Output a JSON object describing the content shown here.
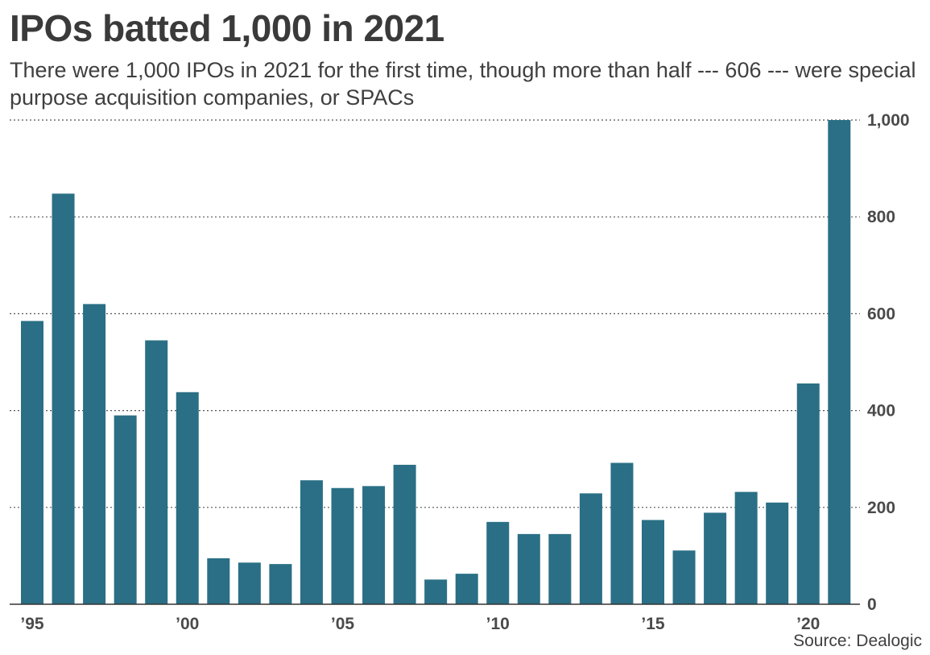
{
  "chart_data": {
    "type": "bar",
    "title": "IPOs batted 1,000 in 2021",
    "subtitle": "There were 1,000 IPOs in 2021 for the first time, though more than half --- 606 --- were special purpose acquisition companies, or SPACs",
    "source": "Source: Dealogic",
    "categories": [
      1995,
      1996,
      1997,
      1998,
      1999,
      2000,
      2001,
      2002,
      2003,
      2004,
      2005,
      2006,
      2007,
      2008,
      2009,
      2010,
      2011,
      2012,
      2013,
      2014,
      2015,
      2016,
      2017,
      2018,
      2019,
      2020,
      2021
    ],
    "values": [
      585,
      848,
      620,
      390,
      545,
      438,
      95,
      86,
      83,
      256,
      240,
      244,
      288,
      51,
      63,
      170,
      145,
      145,
      229,
      292,
      174,
      111,
      189,
      232,
      210,
      456,
      1000
    ],
    "x_tick_labels": [
      {
        "year": 1995,
        "label": "’95"
      },
      {
        "year": 2000,
        "label": "’00"
      },
      {
        "year": 2005,
        "label": "’05"
      },
      {
        "year": 2010,
        "label": "’10"
      },
      {
        "year": 2015,
        "label": "’15"
      },
      {
        "year": 2020,
        "label": "’20"
      }
    ],
    "y_ticks": [
      0,
      200,
      400,
      600,
      800,
      1000
    ],
    "y_tick_labels": [
      "0",
      "200",
      "400",
      "600",
      "800",
      "1,000"
    ],
    "ylim": [
      0,
      1000
    ],
    "grid": "dotted horizontal",
    "y_axis_side": "right",
    "xlabel": "",
    "ylabel": "",
    "colors": {
      "bar": "#2a6f85",
      "text": "#3a3a3a",
      "grid": "#555555",
      "axis": "#333333"
    }
  }
}
